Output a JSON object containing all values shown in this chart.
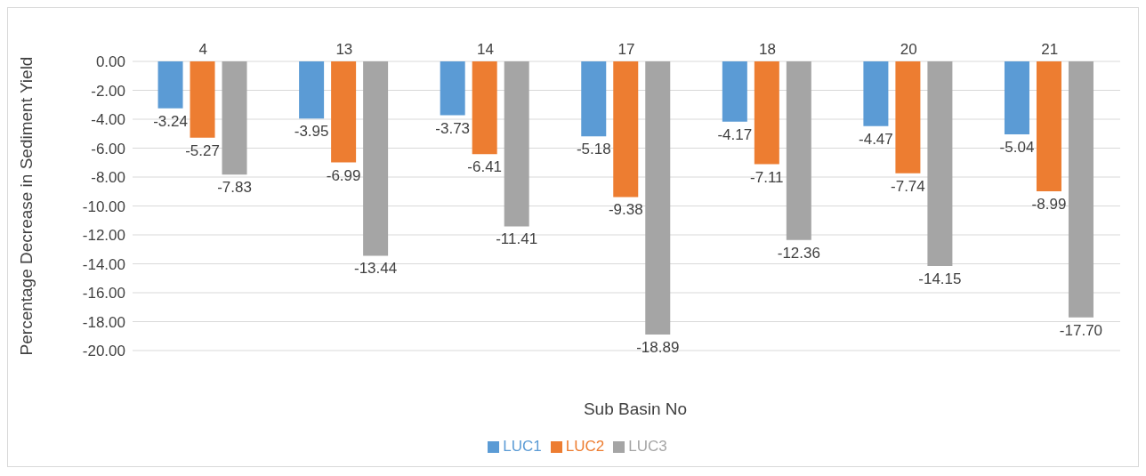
{
  "chart_data": {
    "type": "bar",
    "xlabel": "Sub Basin No",
    "ylabel": "Percentage Decrease in Sediment Yield",
    "categories": [
      "4",
      "13",
      "14",
      "17",
      "18",
      "20",
      "21"
    ],
    "series": [
      {
        "name": "LUC1",
        "color": "#5b9bd5",
        "values": [
          -3.24,
          -3.95,
          -3.73,
          -5.18,
          -4.17,
          -4.47,
          -5.04
        ],
        "value_labels": [
          "-3.24",
          "-3.95",
          "-3.73",
          "-5.18",
          "-4.17",
          "-4.47",
          "-5.04"
        ]
      },
      {
        "name": "LUC2",
        "color": "#ed7d31",
        "values": [
          -5.27,
          -6.99,
          -6.41,
          -9.38,
          -7.11,
          -7.74,
          -8.99
        ],
        "value_labels": [
          "-5.27",
          "-6.99",
          "-6.41",
          "-9.38",
          "-7.11",
          "-7.74",
          "-8.99"
        ]
      },
      {
        "name": "LUC3",
        "color": "#a5a5a5",
        "values": [
          -7.83,
          -13.44,
          -11.41,
          -18.89,
          -12.36,
          -14.15,
          -17.7
        ],
        "value_labels": [
          "-7.83",
          "-13.44",
          "-11.41",
          "-18.89",
          "-12.36",
          "-14.15",
          "-17.70"
        ]
      }
    ],
    "ylim": [
      -20,
      0
    ],
    "yticks": [
      {
        "value": 0,
        "label": "0.00"
      },
      {
        "value": -2,
        "label": "-2.00"
      },
      {
        "value": -4,
        "label": "-4.00"
      },
      {
        "value": -6,
        "label": "-6.00"
      },
      {
        "value": -8,
        "label": "-8.00"
      },
      {
        "value": -10,
        "label": "-10.00"
      },
      {
        "value": -12,
        "label": "-12.00"
      },
      {
        "value": -14,
        "label": "-14.00"
      },
      {
        "value": -16,
        "label": "-16.00"
      },
      {
        "value": -18,
        "label": "-18.00"
      },
      {
        "value": -20,
        "label": "-20.00"
      }
    ],
    "grid": "y",
    "legend": "bottom"
  }
}
